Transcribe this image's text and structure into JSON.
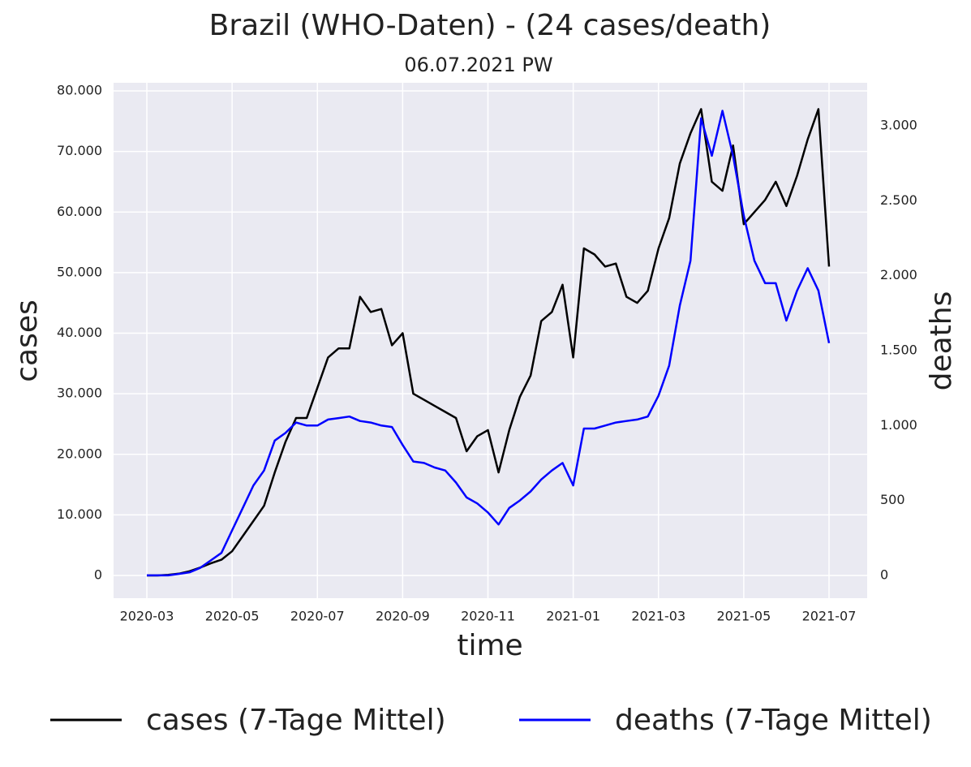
{
  "chart_data": {
    "type": "line",
    "title": "Brazil (WHO-Daten) - (24 cases/death)",
    "subtitle": "06.07.2021 PW",
    "xlabel": "time",
    "ylabel": "cases",
    "y2label": "deaths",
    "x": [
      "2020-03",
      "2020-03",
      "2020-03",
      "2020-03",
      "2020-04",
      "2020-04",
      "2020-04",
      "2020-04",
      "2020-05",
      "2020-05",
      "2020-05",
      "2020-05",
      "2020-06",
      "2020-06",
      "2020-06",
      "2020-06",
      "2020-07",
      "2020-07",
      "2020-07",
      "2020-07",
      "2020-08",
      "2020-08",
      "2020-08",
      "2020-08",
      "2020-09",
      "2020-09",
      "2020-09",
      "2020-09",
      "2020-10",
      "2020-10",
      "2020-10",
      "2020-10",
      "2020-11",
      "2020-11",
      "2020-11",
      "2020-11",
      "2020-12",
      "2020-12",
      "2020-12",
      "2020-12",
      "2021-01",
      "2021-01",
      "2021-01",
      "2021-01",
      "2021-02",
      "2021-02",
      "2021-02",
      "2021-02",
      "2021-03",
      "2021-03",
      "2021-03",
      "2021-03",
      "2021-04",
      "2021-04",
      "2021-04",
      "2021-04",
      "2021-05",
      "2021-05",
      "2021-05",
      "2021-05",
      "2021-06",
      "2021-06",
      "2021-06",
      "2021-06",
      "2021-07"
    ],
    "series": [
      {
        "name": "cases (7-Tage Mittel)",
        "color": "#000000",
        "values": [
          0,
          0,
          100,
          300,
          700,
          1300,
          2000,
          2600,
          4000,
          6500,
          9000,
          11500,
          17000,
          22000,
          26000,
          26000,
          31000,
          36000,
          37500,
          37500,
          46000,
          43500,
          44000,
          38000,
          40000,
          30000,
          29000,
          28000,
          27000,
          26000,
          20500,
          23000,
          24000,
          17000,
          24000,
          29500,
          33000,
          42000,
          43500,
          48000,
          36000,
          54000,
          53000,
          51000,
          51500,
          46000,
          45000,
          47000,
          54000,
          59000,
          68000,
          73000,
          77000,
          65000,
          63500,
          71000,
          58000,
          60000,
          62000,
          65000,
          61000,
          66000,
          72000,
          77000,
          51000
        ]
      },
      {
        "name": "deaths (7-Tage Mittel)",
        "color": "#0000ff",
        "axis": "y2",
        "values": [
          0,
          0,
          0,
          10,
          20,
          50,
          100,
          150,
          300,
          450,
          600,
          700,
          900,
          950,
          1020,
          1000,
          1000,
          1040,
          1050,
          1060,
          1030,
          1020,
          1000,
          990,
          870,
          760,
          750,
          720,
          700,
          620,
          520,
          480,
          420,
          340,
          450,
          500,
          560,
          640,
          700,
          750,
          600,
          980,
          980,
          1000,
          1020,
          1030,
          1040,
          1060,
          1200,
          1400,
          1800,
          2100,
          3050,
          2800,
          3100,
          2800,
          2400,
          2100,
          1950,
          1950,
          1700,
          1900,
          2050,
          1900,
          1550
        ]
      }
    ],
    "xticks": [
      "2020-03",
      "2020-05",
      "2020-07",
      "2020-09",
      "2020-11",
      "2021-01",
      "2021-03",
      "2021-05",
      "2021-07"
    ],
    "ylim": [
      -3750,
      81340
    ],
    "yticks": [
      0,
      {
        "value": 10000,
        "label": "10.000"
      },
      {
        "value": 20000,
        "label": "20.000"
      },
      {
        "value": 30000,
        "label": "30.000"
      },
      {
        "value": 40000,
        "label": "40.000"
      },
      {
        "value": 50000,
        "label": "50.000"
      },
      {
        "value": 60000,
        "label": "60.000"
      },
      {
        "value": 70000,
        "label": "70.000"
      },
      {
        "value": 80000,
        "label": "80.000"
      }
    ],
    "y2lim": [
      -152,
      3287
    ],
    "y2ticks": [
      0,
      500,
      {
        "value": 1000,
        "label": "1.000"
      },
      {
        "value": 1500,
        "label": "1.500"
      },
      {
        "value": 2000,
        "label": "2.000"
      },
      {
        "value": 2500,
        "label": "2.500"
      },
      {
        "value": 3000,
        "label": "3.000"
      }
    ],
    "y2label_color": "#0000ff",
    "grid": true,
    "legend": "bottom"
  }
}
